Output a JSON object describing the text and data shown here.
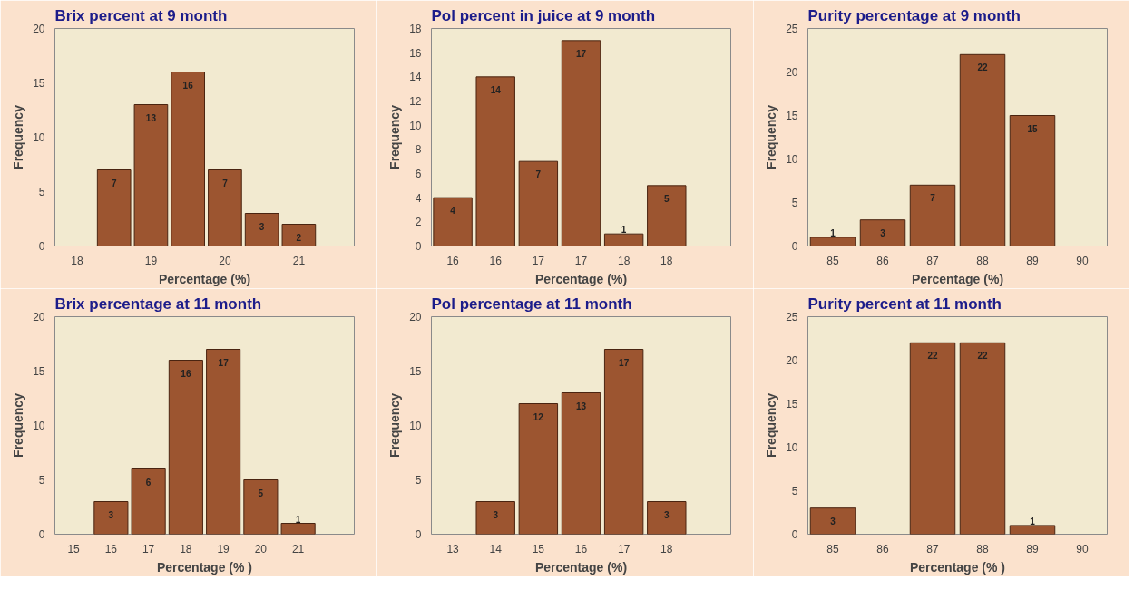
{
  "chart_data": [
    {
      "type": "bar",
      "title": "Brix  percent at 9 month",
      "xlabel": "Percentage (%)",
      "ylabel": "Frequency",
      "x": [
        18.5,
        19,
        19.5,
        20,
        20.5,
        21
      ],
      "values": [
        7,
        13,
        16,
        7,
        3,
        2
      ],
      "color": "#9c5530",
      "xlim": [
        17.7,
        21.75
      ],
      "xticks": [
        18,
        19,
        20,
        21
      ],
      "ylim": [
        0,
        20
      ],
      "yticks": [
        0,
        5,
        10,
        15,
        20
      ],
      "data_labels": true
    },
    {
      "type": "bar",
      "title": "Pol percent in juice  at 9 month",
      "xlabel": "Percentage (%)",
      "ylabel": "Frequency",
      "categories": [
        "16",
        "16",
        "17",
        "17",
        "18",
        "18",
        null
      ],
      "values": [
        4,
        14,
        7,
        17,
        1,
        5,
        null
      ],
      "color": "#9c5530",
      "ylim": [
        0,
        18
      ],
      "yticks": [
        0,
        2,
        4,
        6,
        8,
        10,
        12,
        14,
        16,
        18
      ],
      "data_labels": true
    },
    {
      "type": "bar",
      "title": "Purity percentage  at 9 month",
      "xlabel": "Percentage (%)",
      "ylabel": "Frequency",
      "categories": [
        "85",
        "86",
        "87",
        "88",
        "89",
        "90"
      ],
      "values": [
        1,
        3,
        7,
        22,
        15,
        null
      ],
      "color": "#9c5530",
      "ylim": [
        0,
        25
      ],
      "yticks": [
        0,
        5,
        10,
        15,
        20,
        25
      ],
      "data_labels": true
    },
    {
      "type": "bar",
      "title": "Brix  percentage  at 11 month",
      "xlabel": "Percentage (% )",
      "ylabel": "Frequency",
      "categories": [
        "15",
        "16",
        "17",
        "18",
        "19",
        "20",
        "21",
        null
      ],
      "values": [
        null,
        3,
        6,
        16,
        17,
        5,
        1,
        null
      ],
      "color": "#9c5530",
      "ylim": [
        0,
        20
      ],
      "yticks": [
        0,
        5,
        10,
        15,
        20
      ],
      "data_labels": true
    },
    {
      "type": "bar",
      "title": "Pol percentage  at 11 month",
      "xlabel": "Percentage (%)",
      "ylabel": "Frequency",
      "categories": [
        "13",
        "14",
        "15",
        "16",
        "17",
        "18",
        null
      ],
      "values": [
        null,
        3,
        12,
        13,
        17,
        3,
        null
      ],
      "color": "#9c5530",
      "ylim": [
        0,
        20
      ],
      "yticks": [
        0,
        5,
        10,
        15,
        20
      ],
      "data_labels": true
    },
    {
      "type": "bar",
      "title": "Purity   percent at 11 month",
      "xlabel": "Percentage (% )",
      "ylabel": "Frequency",
      "categories": [
        "85",
        "86",
        "87",
        "88",
        "89",
        "90"
      ],
      "values": [
        3,
        null,
        22,
        22,
        1,
        null
      ],
      "color": "#9c5530",
      "ylim": [
        0,
        25
      ],
      "yticks": [
        0,
        5,
        10,
        15,
        20,
        25
      ],
      "data_labels": true
    }
  ]
}
